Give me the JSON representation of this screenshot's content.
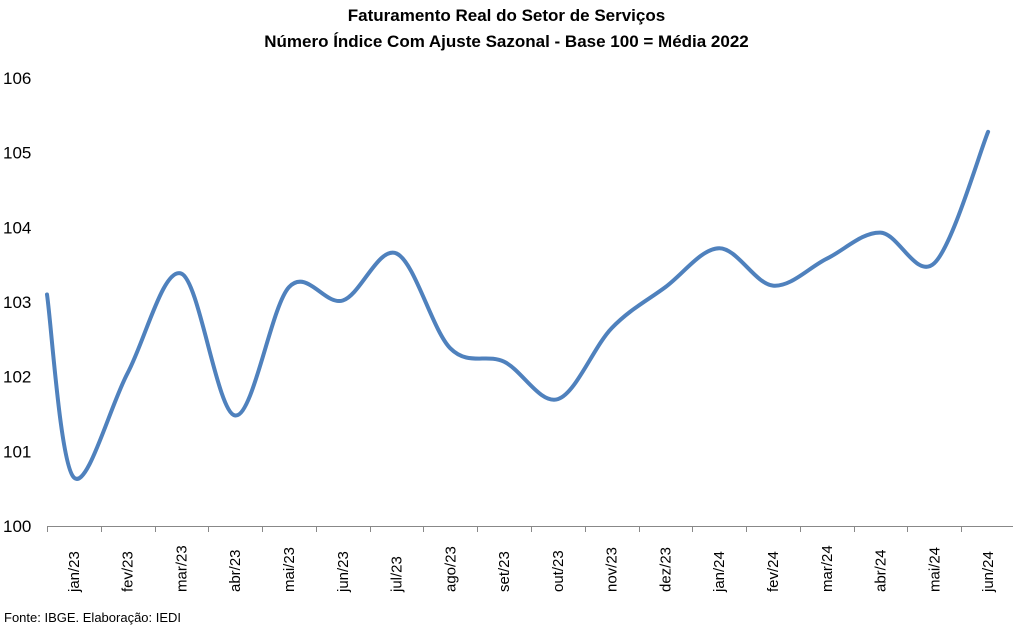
{
  "chart_data": {
    "type": "line",
    "title": "Faturamento  Real do Setor de Serviços",
    "subtitle": "Número Índice Com Ajuste Sazonal - Base 100 = Média 2022",
    "xlabel": "",
    "ylabel": "",
    "ylim": [
      100,
      106
    ],
    "yticks": [
      "100",
      "101",
      "102",
      "103",
      "104",
      "105",
      "106"
    ],
    "categories": [
      "jan/23",
      "fev/23",
      "mar/23",
      "abr/23",
      "mai/23",
      "jun/23",
      "jul/23",
      "ago/23",
      "set/23",
      "out/23",
      "nov/23",
      "dez/23",
      "jan/24",
      "fev/24",
      "mar/24",
      "abr/24",
      "mai/24",
      "jun/24"
    ],
    "series": [
      {
        "name": "",
        "color": "#4f81bd",
        "start_value": 103.1,
        "values": [
          100.65,
          102.05,
          103.38,
          101.48,
          103.2,
          103.02,
          103.65,
          102.38,
          102.2,
          101.7,
          102.65,
          103.2,
          103.72,
          103.22,
          103.58,
          103.93,
          103.52,
          105.28
        ]
      }
    ],
    "grid": false,
    "legend": "none"
  },
  "source": "Fonte: IBGE. Elaboração: IEDI"
}
